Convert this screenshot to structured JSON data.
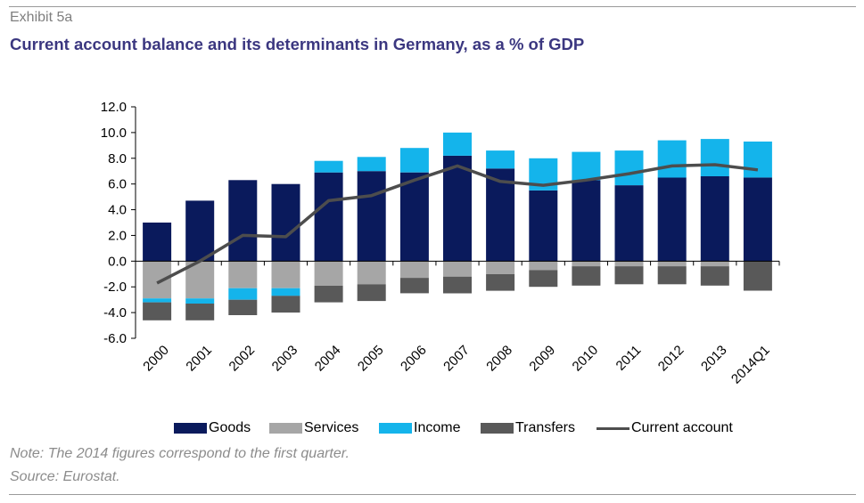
{
  "header": {
    "exhibit": "Exhibit 5a",
    "title": "Current account balance and its determinants in Germany, as a % of GDP"
  },
  "notes": {
    "note": "Note: The 2014 figures correspond to the first quarter.",
    "source": "Source: Eurostat."
  },
  "colors": {
    "goods": "#0a1a5c",
    "services": "#a6a6a6",
    "income": "#14b4eb",
    "transfers": "#595959",
    "current_account": "#4d4d4d"
  },
  "chart_data": {
    "type": "bar",
    "stacked": true,
    "title": "Current account balance and its determinants in Germany, as a % of GDP",
    "xlabel": "",
    "ylabel": "",
    "ylim": [
      -6.0,
      12.0
    ],
    "yticks": [
      "12.0",
      "10.0",
      "8.0",
      "6.0",
      "4.0",
      "2.0",
      "0.0",
      "-2.0",
      "-4.0",
      "-6.0"
    ],
    "ytick_values": [
      12,
      10,
      8,
      6,
      4,
      2,
      0,
      -2,
      -4,
      -6
    ],
    "categories": [
      "2000",
      "2001",
      "2002",
      "2003",
      "2004",
      "2005",
      "2006",
      "2007",
      "2008",
      "2009",
      "2010",
      "2011",
      "2012",
      "2013",
      "2014Q1"
    ],
    "legend_position": "bottom",
    "grid": false,
    "series": [
      {
        "name": "Goods",
        "kind": "bar",
        "values": [
          3.0,
          4.7,
          6.3,
          6.0,
          6.9,
          7.0,
          6.9,
          8.2,
          7.2,
          5.5,
          6.3,
          5.9,
          6.5,
          6.6,
          6.5
        ]
      },
      {
        "name": "Services",
        "kind": "bar",
        "values": [
          -2.9,
          -2.9,
          -2.1,
          -2.1,
          -1.9,
          -1.8,
          -1.3,
          -1.2,
          -1.0,
          -0.7,
          -0.4,
          -0.4,
          -0.4,
          -0.4,
          0.0
        ]
      },
      {
        "name": "Income",
        "kind": "bar",
        "values": [
          -0.3,
          -0.4,
          -0.9,
          -0.6,
          0.9,
          1.1,
          1.9,
          1.8,
          1.4,
          2.5,
          2.2,
          2.7,
          2.9,
          2.9,
          2.8
        ]
      },
      {
        "name": "Transfers",
        "kind": "bar",
        "values": [
          -1.4,
          -1.3,
          -1.2,
          -1.3,
          -1.3,
          -1.3,
          -1.2,
          -1.3,
          -1.3,
          -1.3,
          -1.5,
          -1.4,
          -1.4,
          -1.5,
          -2.3
        ]
      },
      {
        "name": "Current account",
        "kind": "line",
        "values": [
          -1.7,
          0.0,
          2.0,
          1.9,
          4.7,
          5.1,
          6.3,
          7.4,
          6.2,
          5.9,
          6.3,
          6.8,
          7.4,
          7.5,
          7.1
        ]
      }
    ]
  }
}
